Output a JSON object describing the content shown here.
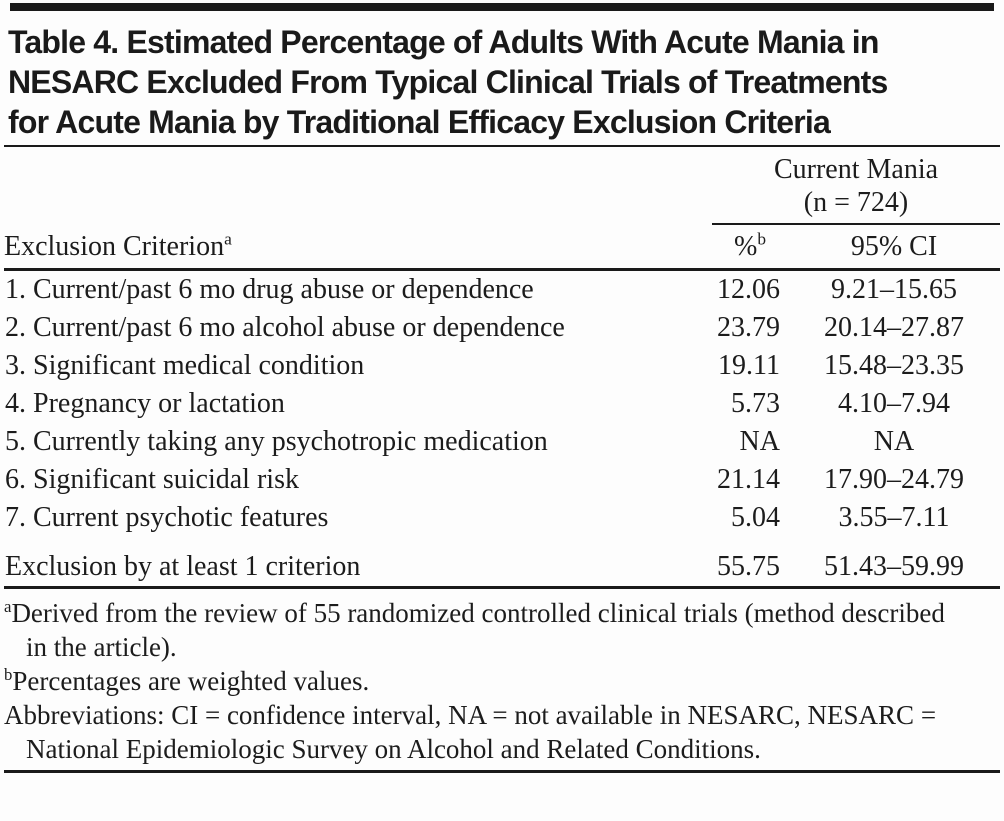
{
  "title": {
    "lines": [
      "Table 4. Estimated Percentage of Adults With Acute Mania in",
      "NESARC Excluded From Typical Clinical Trials of Treatments",
      "for Acute Mania by Traditional Efficacy Exclusion Criteria"
    ]
  },
  "table": {
    "group_header": {
      "line1": "Current Mania",
      "line2": "(n = 724)"
    },
    "columns": {
      "criterion": "Exclusion Criterion",
      "criterion_sup": "a",
      "pct": "%",
      "pct_sup": "b",
      "ci": "95% CI"
    },
    "rows": [
      {
        "label": "1. Current/past 6 mo drug abuse or dependence",
        "pct": "12.06",
        "ci": "9.21–15.65"
      },
      {
        "label": "2. Current/past 6 mo alcohol abuse or dependence",
        "pct": "23.79",
        "ci": "20.14–27.87"
      },
      {
        "label": "3. Significant medical condition",
        "pct": "19.11",
        "ci": "15.48–23.35"
      },
      {
        "label": "4. Pregnancy or lactation",
        "pct": "5.73",
        "ci": "4.10–7.94"
      },
      {
        "label": "5. Currently taking any psychotropic medication",
        "pct": "NA",
        "ci": "NA"
      },
      {
        "label": "6. Significant suicidal risk",
        "pct": "21.14",
        "ci": "17.90–24.79"
      },
      {
        "label": "7. Current psychotic features",
        "pct": "5.04",
        "ci": "3.55–7.11"
      }
    ],
    "summary_row": {
      "label": "Exclusion by at least 1 criterion",
      "pct": "55.75",
      "ci": "51.43–59.99"
    }
  },
  "footnotes": [
    {
      "sup": "a",
      "text": "Derived from the review of 55 randomized controlled clinical trials (method described in the article)."
    },
    {
      "sup": "b",
      "text": "Percentages are weighted values."
    },
    {
      "sup": "",
      "text": "Abbreviations: CI = confidence interval, NA = not available in NESARC, NESARC = National Epidemiologic Survey on Alcohol and Related Conditions."
    }
  ],
  "colors": {
    "text": "#1c1c1c",
    "rule": "#1a1a1a",
    "background": "#fdfdfd"
  }
}
